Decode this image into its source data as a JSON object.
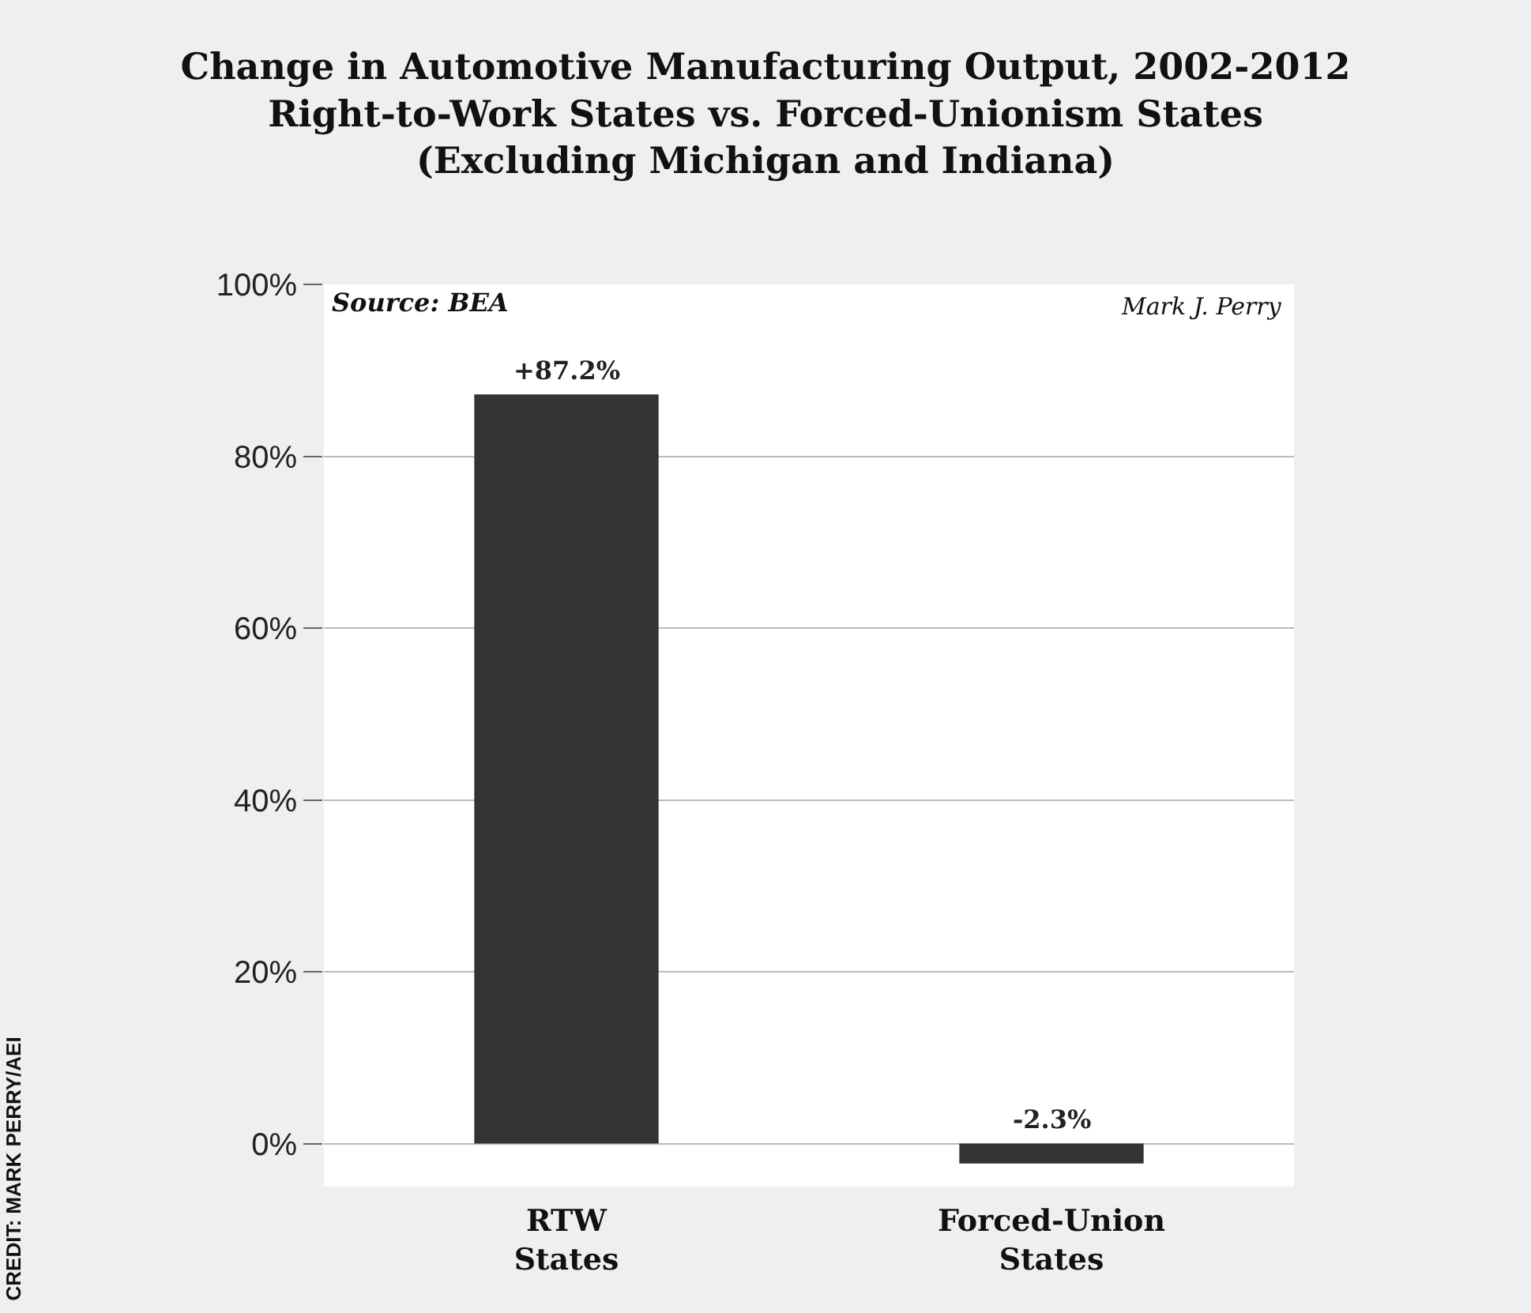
{
  "chart_data": {
    "type": "bar",
    "title": "Change in Automotive Manufacturing Output, 2002-2012\nRight-to-Work States vs. Forced-Unionism States\n(Excluding Michigan and Indiana)",
    "categories": [
      "RTW States",
      "Forced-Union States"
    ],
    "values": [
      87.2,
      -2.3
    ],
    "value_labels": [
      "+87.2%",
      "-2.3%"
    ],
    "color": "#333333",
    "ylim": [
      -5,
      100
    ],
    "yticks": [
      {
        "value": 0,
        "label": "0%"
      },
      {
        "value": 20,
        "label": "20%"
      },
      {
        "value": 40,
        "label": "40%"
      },
      {
        "value": 60,
        "label": "60%"
      },
      {
        "value": 80,
        "label": "80%"
      },
      {
        "value": 100,
        "label": "100%"
      }
    ],
    "grid": "y",
    "annotations": [
      "Source: BEA",
      "Mark J. Perry",
      "CREDIT: MARK PERRY/AEI"
    ]
  }
}
